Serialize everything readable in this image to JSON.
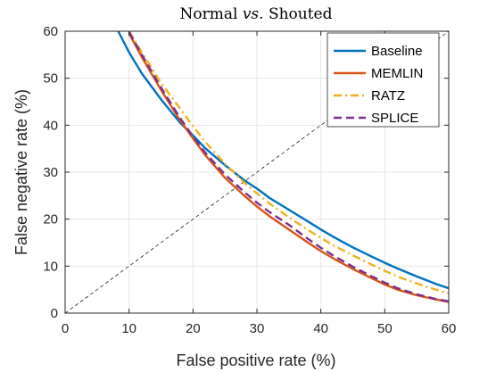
{
  "chart_data": {
    "type": "line",
    "title_main": "Normal ",
    "title_vs": "vs.",
    "title_end": " Shouted",
    "xlabel": "False positive rate (%)",
    "ylabel": "False negative rate (%)",
    "xlim": [
      0,
      60
    ],
    "ylim": [
      0,
      60
    ],
    "xticks": [
      0,
      10,
      20,
      30,
      40,
      50,
      60
    ],
    "yticks": [
      0,
      10,
      20,
      30,
      40,
      50,
      60
    ],
    "grid": true,
    "legend_position": "top-right",
    "series": [
      {
        "name": "Baseline",
        "color": "#0072BD",
        "dash": "solid",
        "x": [
          8.3,
          10,
          12,
          15,
          18,
          20,
          22,
          25,
          28,
          30,
          32,
          35,
          38,
          40,
          42,
          45,
          48,
          50,
          52,
          55,
          58,
          60
        ],
        "y": [
          60,
          55.5,
          51,
          45.5,
          40.5,
          37.8,
          35,
          31.5,
          28.3,
          26.5,
          24.5,
          22,
          19.5,
          17.8,
          16.2,
          14,
          12,
          10.7,
          9.5,
          7.8,
          6.2,
          5.3
        ]
      },
      {
        "name": "MEMLIN",
        "color": "#D95319",
        "dash": "solid",
        "x": [
          10,
          12,
          15,
          18,
          20,
          22,
          25,
          28,
          30,
          32,
          35,
          38,
          40,
          42,
          45,
          48,
          50,
          52,
          55,
          58,
          60
        ],
        "y": [
          59.5,
          54.5,
          47.5,
          41,
          37.2,
          33.5,
          28.8,
          25,
          22.7,
          20.6,
          17.8,
          15,
          13.2,
          11.6,
          9.4,
          7.4,
          6.1,
          5,
          3.8,
          2.9,
          2.4
        ]
      },
      {
        "name": "RATZ",
        "color": "#EDB120",
        "dash": "dashdot",
        "x": [
          10,
          12,
          15,
          18,
          20,
          22,
          25,
          28,
          30,
          32,
          35,
          38,
          40,
          42,
          45,
          48,
          50,
          52,
          55,
          58,
          60
        ],
        "y": [
          60,
          55.5,
          49,
          43.5,
          39.8,
          36.3,
          31.8,
          27.8,
          25.5,
          23.3,
          20.4,
          17.7,
          16,
          14.4,
          12.3,
          10.3,
          9,
          7.8,
          6.3,
          5,
          4.2
        ]
      },
      {
        "name": "SPLICE",
        "color": "#7E2F8E",
        "dash": "dashed",
        "x": [
          10,
          12,
          15,
          18,
          20,
          22,
          25,
          28,
          30,
          32,
          35,
          38,
          40,
          42,
          45,
          48,
          50,
          52,
          55,
          58,
          60
        ],
        "y": [
          59.8,
          55,
          48,
          41.5,
          37.6,
          34,
          29.5,
          25.8,
          23.5,
          21.5,
          18.8,
          15.8,
          13.9,
          12.2,
          9.9,
          7.8,
          6.5,
          5.3,
          4,
          3,
          2.5
        ]
      }
    ],
    "reference_line": {
      "x": [
        0,
        60
      ],
      "y": [
        0,
        60
      ],
      "color": "#000000",
      "dash": "dashed"
    }
  }
}
